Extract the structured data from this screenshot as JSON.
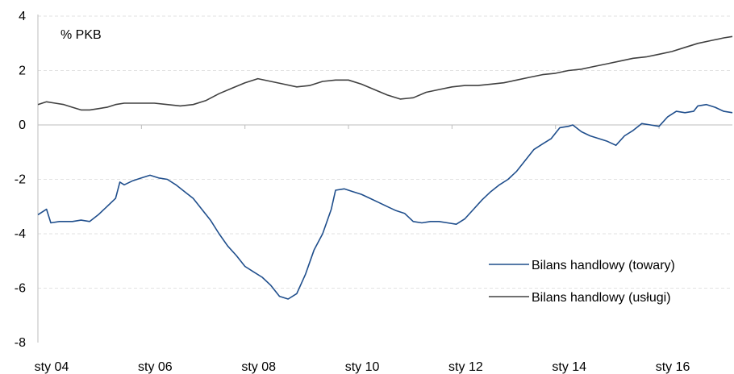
{
  "chart_data": {
    "type": "line",
    "unit_label": "% PKB",
    "ylim": [
      -8,
      4
    ],
    "yticks": [
      "4",
      "2",
      "0",
      "-2",
      "-4",
      "-6",
      "-8"
    ],
    "xlim": [
      "2004-01",
      "2017-06"
    ],
    "xtick_labels": [
      "sty 04",
      "sty 06",
      "sty 08",
      "sty 10",
      "sty 12",
      "sty 14",
      "sty 16"
    ],
    "xtick_dates": [
      "2004-01",
      "2006-01",
      "2008-01",
      "2010-01",
      "2012-01",
      "2014-01",
      "2016-01"
    ],
    "grid": "horizontal dashed",
    "legend_position": "bottom-right",
    "series": [
      {
        "name": "Bilans handlowy (towary)",
        "color": "#1f4e8c",
        "points": [
          [
            "2004-01",
            -3.3
          ],
          [
            "2004-03",
            -3.1
          ],
          [
            "2004-04",
            -3.6
          ],
          [
            "2004-06",
            -3.55
          ],
          [
            "2004-09",
            -3.55
          ],
          [
            "2004-11",
            -3.5
          ],
          [
            "2005-01",
            -3.55
          ],
          [
            "2005-03",
            -3.3
          ],
          [
            "2005-05",
            -3.0
          ],
          [
            "2005-07",
            -2.7
          ],
          [
            "2005-08",
            -2.1
          ],
          [
            "2005-09",
            -2.2
          ],
          [
            "2005-11",
            -2.05
          ],
          [
            "2006-01",
            -1.95
          ],
          [
            "2006-03",
            -1.85
          ],
          [
            "2006-05",
            -1.95
          ],
          [
            "2006-07",
            -2.0
          ],
          [
            "2006-09",
            -2.2
          ],
          [
            "2006-11",
            -2.45
          ],
          [
            "2007-01",
            -2.7
          ],
          [
            "2007-03",
            -3.1
          ],
          [
            "2007-05",
            -3.5
          ],
          [
            "2007-07",
            -4.0
          ],
          [
            "2007-09",
            -4.45
          ],
          [
            "2007-11",
            -4.8
          ],
          [
            "2008-01",
            -5.2
          ],
          [
            "2008-03",
            -5.4
          ],
          [
            "2008-05",
            -5.6
          ],
          [
            "2008-07",
            -5.9
          ],
          [
            "2008-09",
            -6.3
          ],
          [
            "2008-11",
            -6.4
          ],
          [
            "2009-01",
            -6.2
          ],
          [
            "2009-03",
            -5.5
          ],
          [
            "2009-05",
            -4.6
          ],
          [
            "2009-07",
            -4.0
          ],
          [
            "2009-09",
            -3.1
          ],
          [
            "2009-10",
            -2.4
          ],
          [
            "2009-12",
            -2.35
          ],
          [
            "2010-02",
            -2.45
          ],
          [
            "2010-04",
            -2.55
          ],
          [
            "2010-06",
            -2.7
          ],
          [
            "2010-08",
            -2.85
          ],
          [
            "2010-10",
            -3.0
          ],
          [
            "2010-12",
            -3.15
          ],
          [
            "2011-02",
            -3.25
          ],
          [
            "2011-04",
            -3.55
          ],
          [
            "2011-06",
            -3.6
          ],
          [
            "2011-08",
            -3.55
          ],
          [
            "2011-10",
            -3.55
          ],
          [
            "2011-12",
            -3.6
          ],
          [
            "2012-02",
            -3.65
          ],
          [
            "2012-04",
            -3.45
          ],
          [
            "2012-06",
            -3.1
          ],
          [
            "2012-08",
            -2.75
          ],
          [
            "2012-10",
            -2.45
          ],
          [
            "2012-12",
            -2.2
          ],
          [
            "2013-02",
            -2.0
          ],
          [
            "2013-04",
            -1.7
          ],
          [
            "2013-06",
            -1.3
          ],
          [
            "2013-08",
            -0.9
          ],
          [
            "2013-10",
            -0.7
          ],
          [
            "2013-12",
            -0.5
          ],
          [
            "2014-02",
            -0.1
          ],
          [
            "2014-04",
            -0.05
          ],
          [
            "2014-05",
            0.0
          ],
          [
            "2014-07",
            -0.25
          ],
          [
            "2014-09",
            -0.4
          ],
          [
            "2014-11",
            -0.5
          ],
          [
            "2015-01",
            -0.6
          ],
          [
            "2015-03",
            -0.75
          ],
          [
            "2015-05",
            -0.4
          ],
          [
            "2015-07",
            -0.2
          ],
          [
            "2015-09",
            0.05
          ],
          [
            "2015-11",
            0.0
          ],
          [
            "2016-01",
            -0.05
          ],
          [
            "2016-03",
            0.3
          ],
          [
            "2016-05",
            0.5
          ],
          [
            "2016-07",
            0.45
          ],
          [
            "2016-09",
            0.5
          ],
          [
            "2016-10",
            0.7
          ],
          [
            "2016-12",
            0.75
          ],
          [
            "2017-02",
            0.65
          ],
          [
            "2017-04",
            0.5
          ],
          [
            "2017-06",
            0.45
          ]
        ]
      },
      {
        "name": "Bilans handlowy (usługi)",
        "color": "#404040",
        "points": [
          [
            "2004-01",
            0.75
          ],
          [
            "2004-03",
            0.85
          ],
          [
            "2004-05",
            0.8
          ],
          [
            "2004-07",
            0.75
          ],
          [
            "2004-09",
            0.65
          ],
          [
            "2004-11",
            0.55
          ],
          [
            "2005-01",
            0.55
          ],
          [
            "2005-03",
            0.6
          ],
          [
            "2005-05",
            0.65
          ],
          [
            "2005-07",
            0.75
          ],
          [
            "2005-09",
            0.8
          ],
          [
            "2005-11",
            0.8
          ],
          [
            "2006-01",
            0.8
          ],
          [
            "2006-04",
            0.8
          ],
          [
            "2006-07",
            0.75
          ],
          [
            "2006-10",
            0.7
          ],
          [
            "2007-01",
            0.75
          ],
          [
            "2007-04",
            0.9
          ],
          [
            "2007-07",
            1.15
          ],
          [
            "2007-10",
            1.35
          ],
          [
            "2008-01",
            1.55
          ],
          [
            "2008-04",
            1.7
          ],
          [
            "2008-07",
            1.6
          ],
          [
            "2008-10",
            1.5
          ],
          [
            "2009-01",
            1.4
          ],
          [
            "2009-04",
            1.45
          ],
          [
            "2009-07",
            1.6
          ],
          [
            "2009-10",
            1.65
          ],
          [
            "2010-01",
            1.65
          ],
          [
            "2010-04",
            1.5
          ],
          [
            "2010-07",
            1.3
          ],
          [
            "2010-10",
            1.1
          ],
          [
            "2011-01",
            0.95
          ],
          [
            "2011-04",
            1.0
          ],
          [
            "2011-07",
            1.2
          ],
          [
            "2011-10",
            1.3
          ],
          [
            "2012-01",
            1.4
          ],
          [
            "2012-04",
            1.45
          ],
          [
            "2012-07",
            1.45
          ],
          [
            "2012-10",
            1.5
          ],
          [
            "2013-01",
            1.55
          ],
          [
            "2013-04",
            1.65
          ],
          [
            "2013-07",
            1.75
          ],
          [
            "2013-10",
            1.85
          ],
          [
            "2014-01",
            1.9
          ],
          [
            "2014-04",
            2.0
          ],
          [
            "2014-07",
            2.05
          ],
          [
            "2014-10",
            2.15
          ],
          [
            "2015-01",
            2.25
          ],
          [
            "2015-04",
            2.35
          ],
          [
            "2015-07",
            2.45
          ],
          [
            "2015-10",
            2.5
          ],
          [
            "2016-01",
            2.6
          ],
          [
            "2016-04",
            2.7
          ],
          [
            "2016-07",
            2.85
          ],
          [
            "2016-10",
            3.0
          ],
          [
            "2017-01",
            3.1
          ],
          [
            "2017-04",
            3.2
          ],
          [
            "2017-06",
            3.25
          ]
        ]
      }
    ]
  }
}
